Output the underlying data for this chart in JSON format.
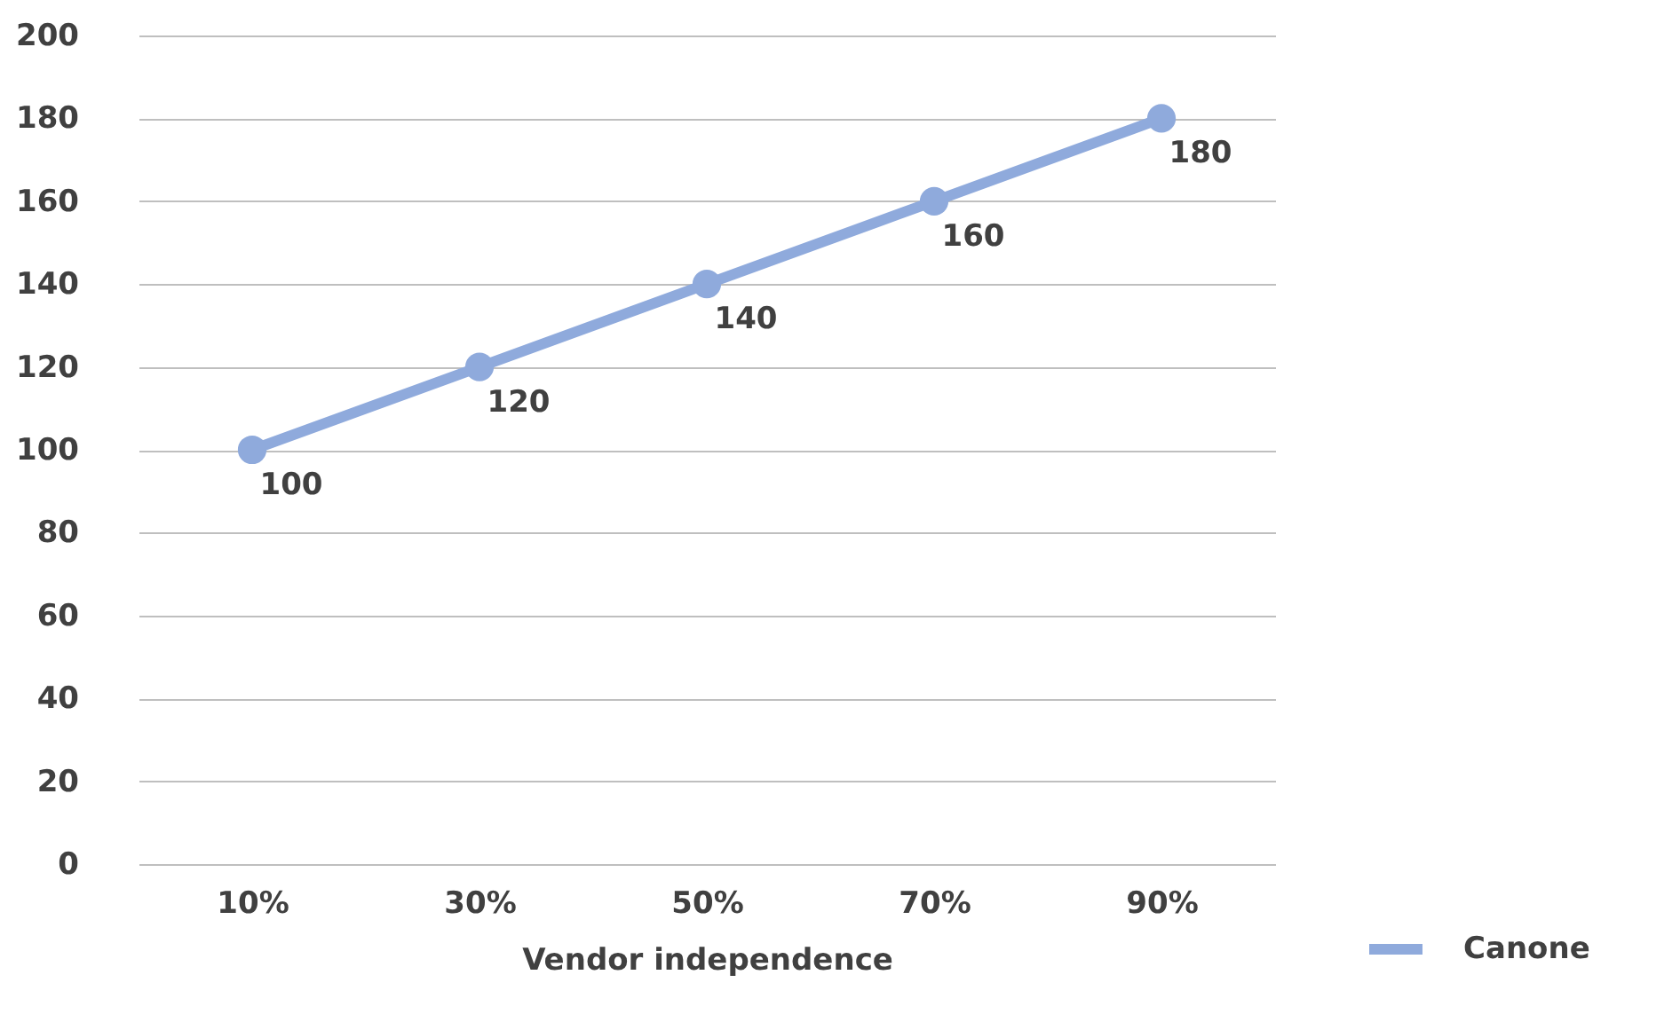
{
  "chart_data": {
    "type": "line",
    "xlabel": "Vendor independence",
    "categories": [
      "10%",
      "30%",
      "50%",
      "70%",
      "90%"
    ],
    "series": [
      {
        "name": "Canone",
        "color": "#8faadc",
        "values": [
          100,
          120,
          140,
          160,
          180
        ]
      }
    ],
    "ylim": [
      0,
      200
    ],
    "yticks": [
      0,
      20,
      40,
      60,
      80,
      100,
      120,
      140,
      160,
      180,
      200
    ],
    "grid": "y",
    "legend": "bottom right",
    "marker": "circle",
    "line_style": "solid",
    "data_labels": true
  }
}
